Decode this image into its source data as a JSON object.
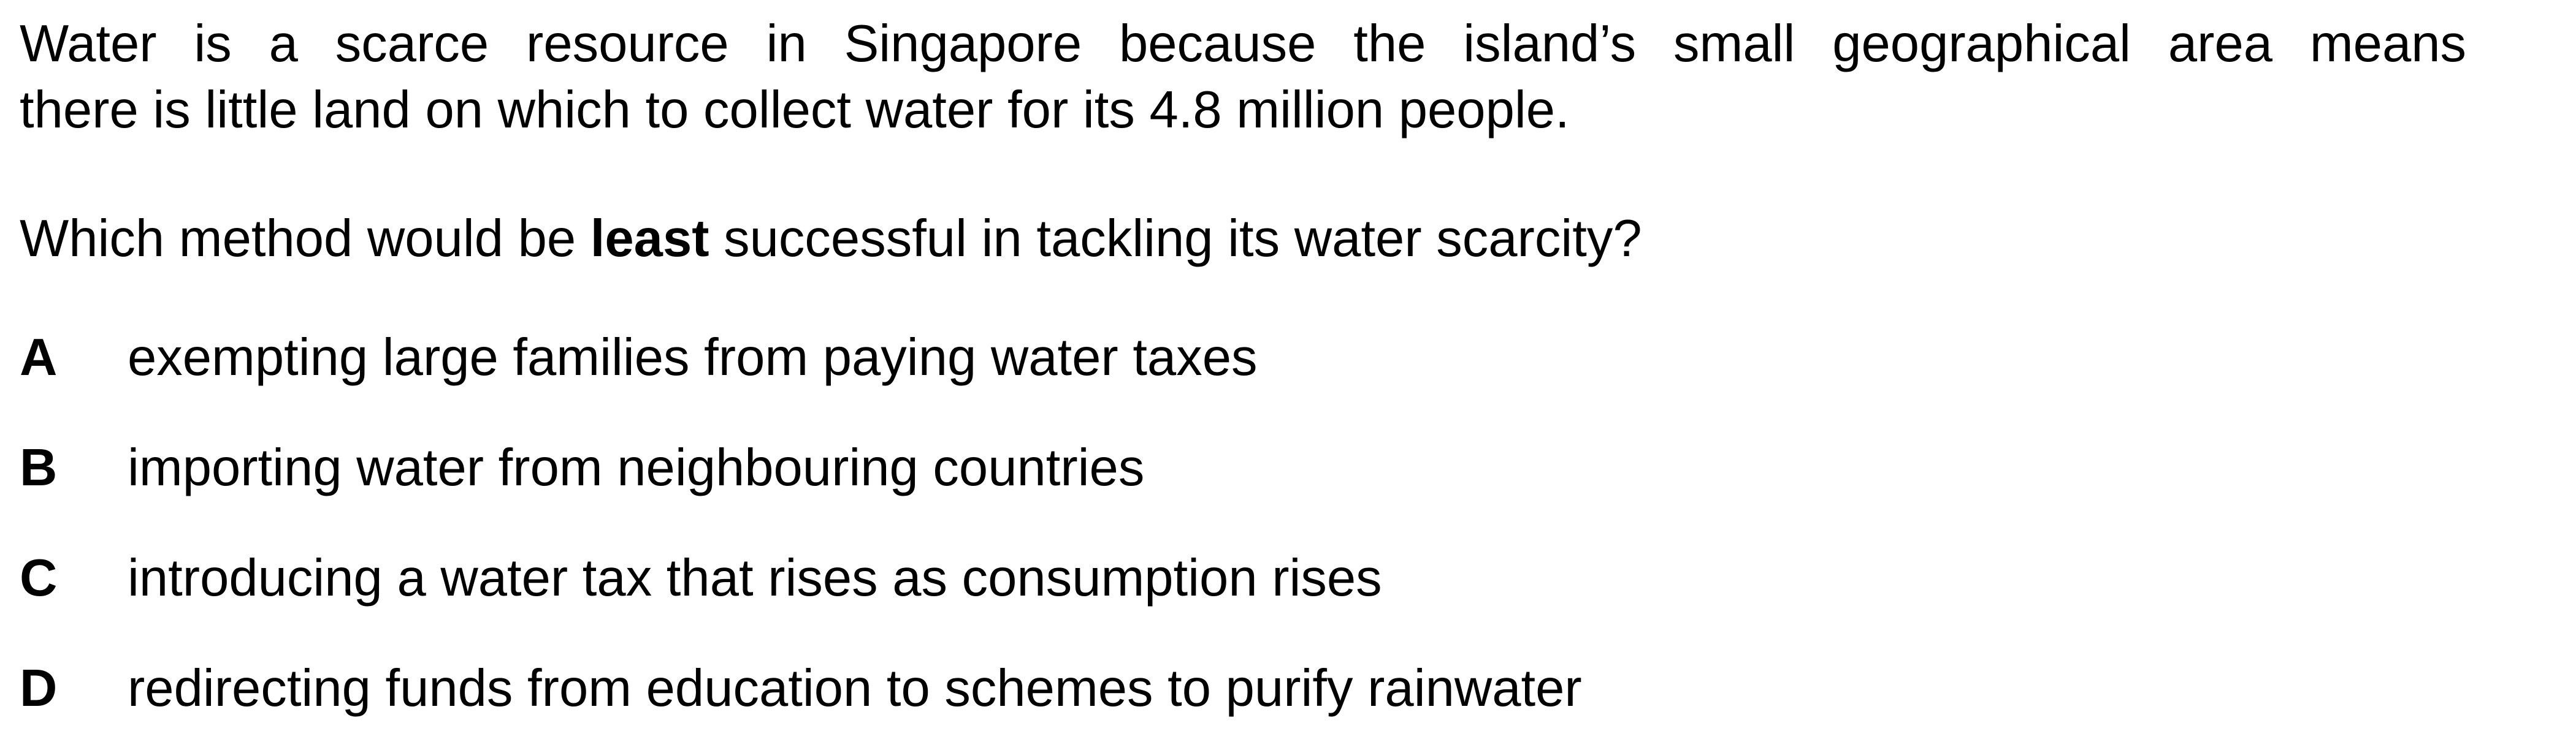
{
  "intro": {
    "line1": "Water is a scarce resource in Singapore because the island’s small geographical area means",
    "line2": "there is little land on which to collect water for its 4.8 million people."
  },
  "question": {
    "before": "Which method would be ",
    "emphasis": "least",
    "after": " successful in tackling its water scarcity?"
  },
  "options": [
    {
      "letter": "A",
      "text": "exempting large families from paying water taxes"
    },
    {
      "letter": "B",
      "text": "importing water from neighbouring countries"
    },
    {
      "letter": "C",
      "text": "introducing a water tax that rises as consumption rises"
    },
    {
      "letter": "D",
      "text": "redirecting funds from education to schemes to purify rainwater"
    }
  ]
}
